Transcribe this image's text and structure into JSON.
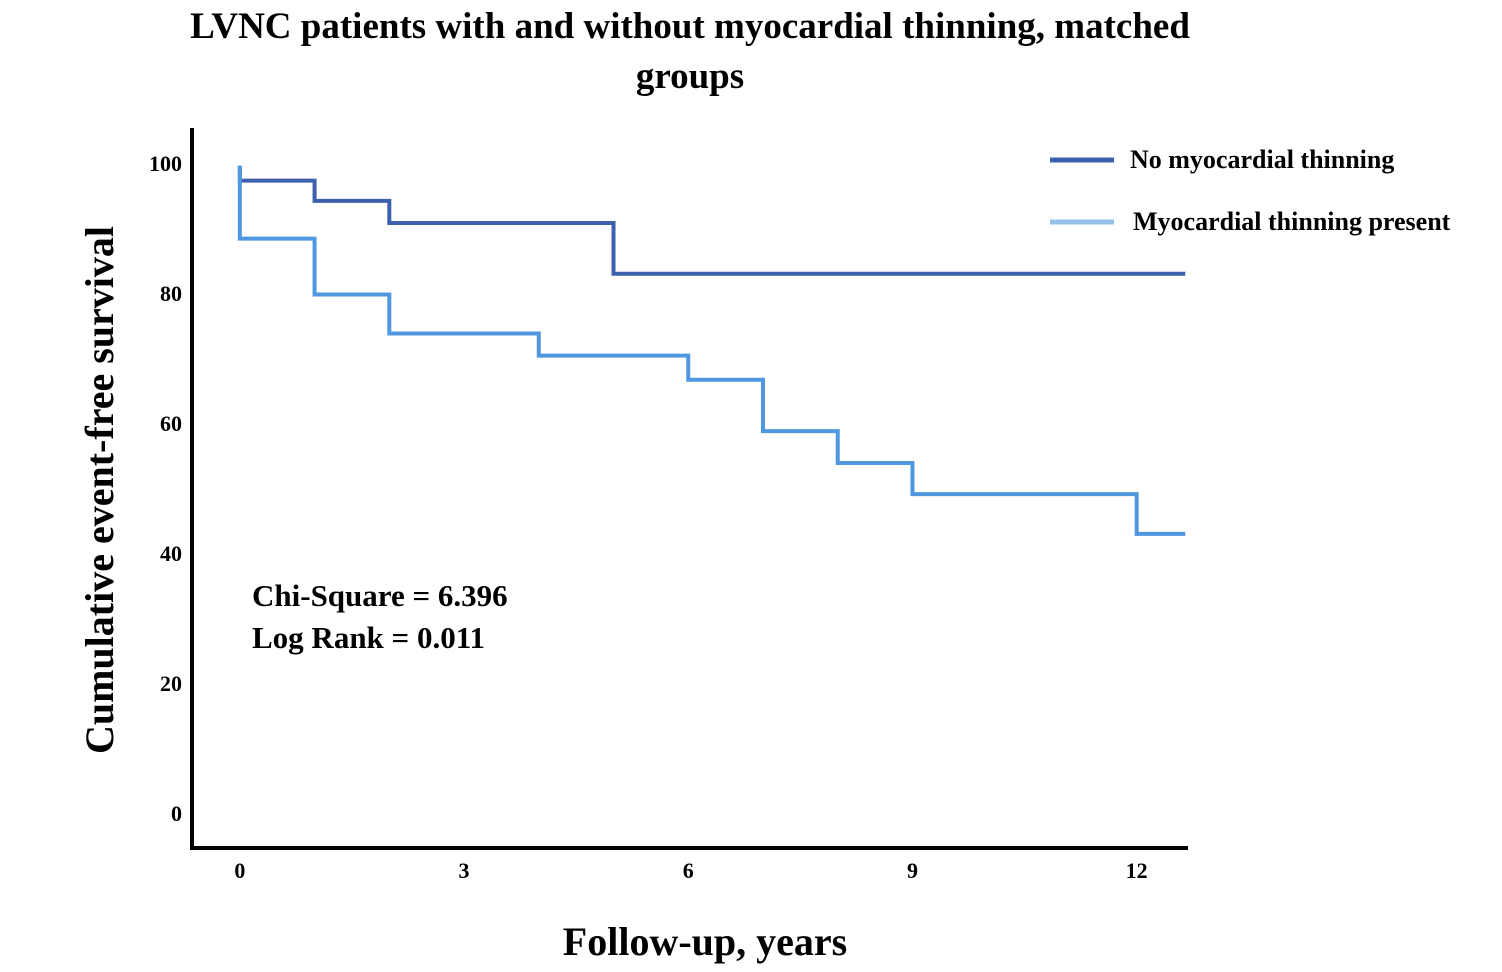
{
  "chart_data": {
    "type": "step",
    "title": "LVNC patients with and without myocardial thinning, matched groups",
    "xlabel": "Follow-up, years",
    "ylabel": "Cumulative event-free survival",
    "annotations": [
      "Chi-Square = 6.396",
      "Log Rank = 0.011"
    ],
    "xlim": [
      -0.64,
      12.66
    ],
    "ylim": [
      -4.9,
      105.8
    ],
    "xticks": [
      0,
      3,
      6,
      9,
      12
    ],
    "yticks": [
      0,
      20,
      40,
      60,
      80,
      100
    ],
    "legend": "upper right",
    "series": [
      {
        "name": "No myocardial thinning",
        "color": "#3c5fae",
        "x": [
          0,
          0,
          1,
          2,
          5,
          12.65
        ],
        "values": [
          100,
          97.7,
          94.6,
          91.2,
          83.4,
          83.4
        ]
      },
      {
        "name": "Myocardial thinning present",
        "color": "#4f98e0",
        "x": [
          0,
          0,
          1,
          2,
          4,
          6,
          7,
          8,
          9,
          12,
          12.65
        ],
        "values": [
          100,
          88.8,
          80.2,
          74.2,
          70.8,
          67.1,
          59.2,
          54.3,
          49.5,
          43.4,
          43.4
        ]
      }
    ]
  }
}
